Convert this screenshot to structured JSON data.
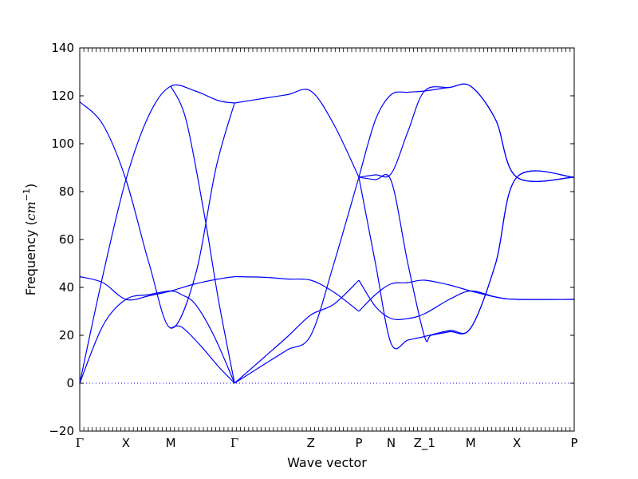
{
  "chart_data": {
    "type": "line",
    "xlabel": "Wave vector",
    "ylabel": "Frequency (cm⁻¹)",
    "ylabel_prefix": "Frequency (",
    "ylabel_unit": "cm",
    "ylabel_exp": "−1",
    "ylabel_suffix": ")",
    "ylim": [
      -20,
      140
    ],
    "xlim": [
      0,
      10.7
    ],
    "yticks": [
      "−20",
      "0",
      "20",
      "40",
      "60",
      "80",
      "100",
      "120",
      "140"
    ],
    "ytick_values": [
      -20,
      0,
      20,
      40,
      60,
      80,
      100,
      120,
      140
    ],
    "xticks": [
      {
        "label": "Γ",
        "x": 0.0
      },
      {
        "label": "X",
        "x": 1.0
      },
      {
        "label": "M",
        "x": 1.97
      },
      {
        "label": "Γ",
        "x": 3.35
      },
      {
        "label": "Z",
        "x": 5.0
      },
      {
        "label": "P",
        "x": 6.04
      },
      {
        "label": "N",
        "x": 6.74
      },
      {
        "label": "Z_1",
        "x": 7.46
      },
      {
        "label": "M",
        "x": 8.46
      },
      {
        "label": "X",
        "x": 9.46
      },
      {
        "label": "P",
        "x": 10.7
      }
    ],
    "zero_line": {
      "y": 0,
      "style": "dotted"
    },
    "line_color": "#0000ff",
    "series": [
      {
        "x": [
          0,
          0.5,
          1.0,
          1.5,
          1.97,
          2.5,
          2.95,
          3.35
        ],
        "y": [
          117.5,
          108,
          85,
          50,
          23,
          45,
          90,
          117
        ]
      },
      {
        "x": [
          0,
          0.5,
          1.0,
          1.5,
          1.97,
          2.5,
          3.0,
          3.35
        ],
        "y": [
          0,
          45,
          85,
          112,
          124,
          122,
          118,
          117
        ]
      },
      {
        "x": [
          0,
          0.5,
          1.0,
          1.5,
          1.97,
          2.2,
          2.5,
          2.9,
          3.35
        ],
        "y": [
          0,
          24,
          35,
          37,
          38.5,
          37,
          33,
          20,
          0
        ]
      },
      {
        "x": [
          0,
          0.5,
          1.0,
          1.5,
          1.97,
          2.5,
          3.0,
          3.35
        ],
        "y": [
          44.5,
          42,
          35,
          36.5,
          38.5,
          41.5,
          43.5,
          44.5
        ]
      },
      {
        "x": [
          1.97,
          2.3,
          2.7,
          3.0,
          3.35
        ],
        "y": [
          124,
          110,
          70,
          35,
          0
        ]
      },
      {
        "x": [
          1.97,
          2.2,
          2.6,
          3.0,
          3.35
        ],
        "y": [
          23,
          23.5,
          16,
          7,
          0
        ]
      },
      {
        "x": [
          3.35,
          4.0,
          4.5,
          5.0,
          5.5,
          6.04
        ],
        "y": [
          117,
          119,
          120.5,
          122,
          108,
          86
        ]
      },
      {
        "x": [
          3.35,
          4.0,
          4.5,
          5.0,
          5.5,
          6.04
        ],
        "y": [
          44.5,
          44.2,
          43.5,
          43,
          38,
          30
        ]
      },
      {
        "x": [
          3.35,
          4.0,
          4.5,
          5.0,
          5.5,
          6.04
        ],
        "y": [
          0,
          11,
          19.5,
          28.5,
          33,
          43
        ]
      },
      {
        "x": [
          3.35,
          4.0,
          4.5,
          5.0,
          5.5,
          6.04
        ],
        "y": [
          0,
          8,
          14,
          20,
          50,
          86
        ]
      },
      {
        "x": [
          6.04,
          6.4,
          6.74,
          7.1,
          7.46,
          8.0,
          8.46,
          9.0,
          9.46,
          10.7
        ],
        "y": [
          86,
          110,
          120.5,
          121.5,
          122,
          123.5,
          124,
          110,
          86,
          86
        ]
      },
      {
        "x": [
          6.04,
          6.4,
          6.74,
          7.1,
          7.46,
          8.0,
          8.46,
          9.0,
          9.46,
          10.7
        ],
        "y": [
          86,
          87,
          87.5,
          105,
          122,
          123.5,
          124,
          110,
          86,
          86
        ]
      },
      {
        "x": [
          6.04,
          6.4,
          6.74,
          7.1,
          7.46,
          8.0,
          8.46,
          9.0,
          9.46,
          10.7
        ],
        "y": [
          86,
          50,
          16.5,
          18,
          19.5,
          22,
          23,
          50,
          86,
          86
        ]
      },
      {
        "x": [
          6.04,
          6.4,
          6.74,
          7.1,
          7.46,
          7.6,
          8.0,
          8.46,
          9.0,
          9.46,
          10.7
        ],
        "y": [
          86,
          85,
          84.5,
          50,
          19.5,
          20,
          21.5,
          23,
          50,
          86,
          86
        ]
      },
      {
        "x": [
          6.04,
          6.4,
          6.74,
          7.1,
          7.46,
          8.0,
          8.46,
          9.0,
          9.46,
          10.7
        ],
        "y": [
          30,
          37,
          41.5,
          42,
          43,
          41,
          38.5,
          36,
          35,
          35
        ]
      },
      {
        "x": [
          6.04,
          6.4,
          6.74,
          7.1,
          7.46,
          8.0,
          8.46,
          9.0,
          9.46,
          10.7
        ],
        "y": [
          43,
          32,
          27,
          27,
          29,
          35,
          38.5,
          36,
          35,
          35
        ]
      }
    ]
  }
}
